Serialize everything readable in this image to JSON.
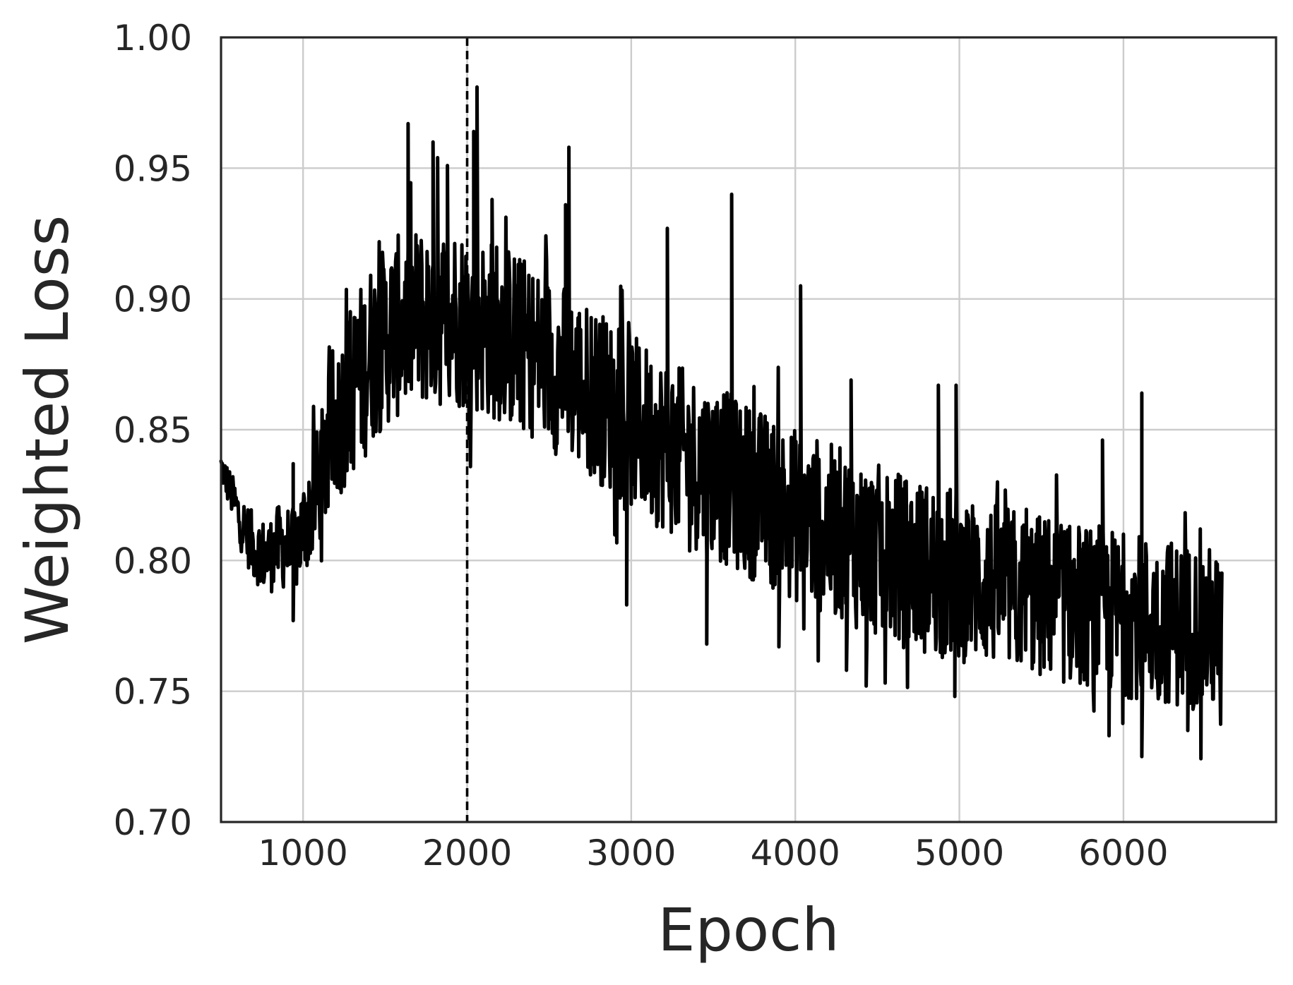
{
  "chart_data": {
    "type": "line",
    "xlabel": "Epoch",
    "ylabel": "Weighted Loss",
    "xlim": [
      500,
      6930
    ],
    "ylim": [
      0.7,
      1.0
    ],
    "x_ticks": [
      1000,
      2000,
      3000,
      4000,
      5000,
      6000
    ],
    "x_tick_labels": [
      "1000",
      "2000",
      "3000",
      "4000",
      "5000",
      "6000"
    ],
    "y_ticks": [
      0.7,
      0.75,
      0.8,
      0.85,
      0.9,
      0.95,
      1.0
    ],
    "y_tick_labels": [
      "0.70",
      "0.75",
      "0.80",
      "0.85",
      "0.90",
      "0.95",
      "1.00"
    ],
    "grid": true,
    "vertical_reference_line": {
      "x": 2000,
      "style": "dashed",
      "color": "#000000"
    },
    "series": [
      {
        "color": "#000000",
        "x": [
          500,
          560,
          620,
          700,
          780,
          860,
          940,
          1000,
          1060,
          1120,
          1180,
          1240,
          1300,
          1360,
          1420,
          1480,
          1540,
          1600,
          1660,
          1720,
          1780,
          1840,
          1900,
          1960,
          2000,
          2060,
          2120,
          2180,
          2240,
          2300,
          2360,
          2420,
          2480,
          2540,
          2600,
          2660,
          2720,
          2780,
          2840,
          2900,
          2960,
          3020,
          3080,
          3140,
          3200,
          3260,
          3320,
          3380,
          3440,
          3500,
          3560,
          3620,
          3680,
          3740,
          3800,
          3860,
          3920,
          3980,
          4040,
          4100,
          4160,
          4220,
          4280,
          4340,
          4400,
          4460,
          4520,
          4580,
          4640,
          4700,
          4760,
          4820,
          4880,
          4940,
          5000,
          5060,
          5120,
          5180,
          5240,
          5300,
          5360,
          5420,
          5480,
          5540,
          5600,
          5660,
          5720,
          5780,
          5840,
          5900,
          5960,
          6020,
          6080,
          6140,
          6200,
          6260,
          6320,
          6380,
          6440,
          6500,
          6560,
          6600
        ],
        "y": [
          0.836,
          0.826,
          0.815,
          0.805,
          0.801,
          0.806,
          0.803,
          0.812,
          0.822,
          0.834,
          0.848,
          0.858,
          0.866,
          0.872,
          0.88,
          0.884,
          0.888,
          0.89,
          0.892,
          0.893,
          0.894,
          0.893,
          0.895,
          0.893,
          0.892,
          0.891,
          0.889,
          0.888,
          0.886,
          0.884,
          0.882,
          0.879,
          0.877,
          0.874,
          0.872,
          0.869,
          0.866,
          0.864,
          0.861,
          0.858,
          0.855,
          0.852,
          0.85,
          0.847,
          0.845,
          0.842,
          0.84,
          0.838,
          0.836,
          0.834,
          0.832,
          0.83,
          0.828,
          0.826,
          0.824,
          0.822,
          0.82,
          0.818,
          0.816,
          0.815,
          0.813,
          0.811,
          0.81,
          0.808,
          0.806,
          0.805,
          0.803,
          0.802,
          0.8,
          0.799,
          0.798,
          0.797,
          0.796,
          0.795,
          0.794,
          0.793,
          0.792,
          0.791,
          0.79,
          0.789,
          0.788,
          0.787,
          0.786,
          0.786,
          0.785,
          0.784,
          0.783,
          0.782,
          0.782,
          0.781,
          0.78,
          0.779,
          0.779,
          0.778,
          0.777,
          0.777,
          0.776,
          0.775,
          0.775,
          0.774,
          0.773,
          0.772
        ],
        "noise_amplitude": [
          0.004,
          0.005,
          0.007,
          0.008,
          0.009,
          0.01,
          0.011,
          0.012,
          0.014,
          0.016,
          0.018,
          0.02,
          0.021,
          0.022,
          0.022,
          0.022,
          0.022,
          0.022,
          0.022,
          0.022,
          0.022,
          0.022,
          0.022,
          0.022,
          0.022,
          0.022,
          0.022,
          0.022,
          0.022,
          0.022,
          0.021,
          0.021,
          0.021,
          0.021,
          0.021,
          0.021,
          0.021,
          0.021,
          0.021,
          0.021,
          0.021,
          0.021,
          0.021,
          0.021,
          0.021,
          0.021,
          0.021,
          0.021,
          0.021,
          0.021,
          0.021,
          0.021,
          0.021,
          0.021,
          0.021,
          0.021,
          0.021,
          0.021,
          0.021,
          0.021,
          0.021,
          0.021,
          0.021,
          0.021,
          0.021,
          0.021,
          0.021,
          0.021,
          0.021,
          0.021,
          0.021,
          0.021,
          0.021,
          0.021,
          0.021,
          0.02,
          0.02,
          0.02,
          0.02,
          0.02,
          0.02,
          0.02,
          0.02,
          0.02,
          0.02,
          0.02,
          0.02,
          0.02,
          0.02,
          0.02,
          0.02,
          0.02,
          0.02,
          0.02,
          0.02,
          0.02,
          0.02,
          0.02,
          0.02,
          0.02,
          0.02,
          0.02
        ],
        "spikes": [
          {
            "x": 940,
            "y": 0.837
          },
          {
            "x": 940,
            "y": 0.777
          },
          {
            "x": 1640,
            "y": 0.967
          },
          {
            "x": 1790,
            "y": 0.96
          },
          {
            "x": 1820,
            "y": 0.954
          },
          {
            "x": 1880,
            "y": 0.951
          },
          {
            "x": 2060,
            "y": 0.981
          },
          {
            "x": 2040,
            "y": 0.964
          },
          {
            "x": 2150,
            "y": 0.938
          },
          {
            "x": 2620,
            "y": 0.958
          },
          {
            "x": 2600,
            "y": 0.936
          },
          {
            "x": 3220,
            "y": 0.927
          },
          {
            "x": 3610,
            "y": 0.94
          },
          {
            "x": 4030,
            "y": 0.905
          },
          {
            "x": 4340,
            "y": 0.869
          },
          {
            "x": 4870,
            "y": 0.867
          },
          {
            "x": 4980,
            "y": 0.867
          },
          {
            "x": 5870,
            "y": 0.846
          },
          {
            "x": 6110,
            "y": 0.864
          },
          {
            "x": 2970,
            "y": 0.783
          },
          {
            "x": 3460,
            "y": 0.768
          },
          {
            "x": 3900,
            "y": 0.767
          },
          {
            "x": 4310,
            "y": 0.758
          },
          {
            "x": 4430,
            "y": 0.752
          },
          {
            "x": 4970,
            "y": 0.748
          },
          {
            "x": 5910,
            "y": 0.733
          },
          {
            "x": 6110,
            "y": 0.725
          },
          {
            "x": 6390,
            "y": 0.735
          }
        ]
      }
    ]
  }
}
